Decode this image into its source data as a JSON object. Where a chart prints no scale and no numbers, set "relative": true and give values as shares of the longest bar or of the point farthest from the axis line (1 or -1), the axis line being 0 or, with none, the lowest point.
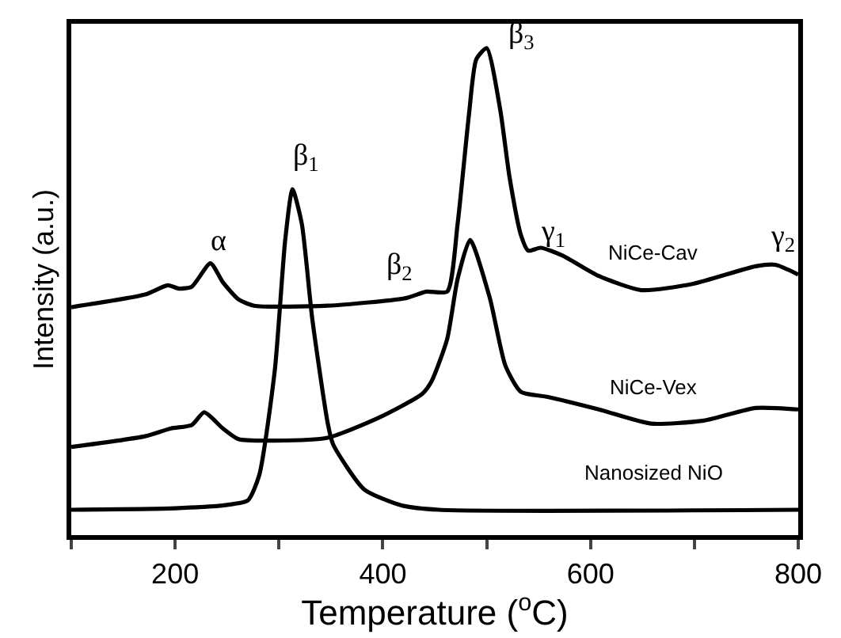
{
  "chart_data": {
    "type": "line",
    "relative": true,
    "xlabel": "Temperature ($^{o}$C)",
    "ylabel": "Intensity (a.u.)",
    "xlim": [
      100,
      800
    ],
    "xticks": [
      {
        "value": 100,
        "label": null
      },
      200,
      {
        "value": 300,
        "label": null
      },
      400,
      {
        "value": 500,
        "label": null
      },
      600,
      {
        "value": 700,
        "label": null
      },
      800
    ],
    "series": [
      {
        "name": "NiCe-Cav",
        "color": "#000000",
        "x": [
          100,
          171,
          193,
          204,
          216,
          234,
          246,
          261,
          276,
          347,
          423,
          442,
          462,
          472,
          483,
          490,
          500,
          513,
          522,
          533,
          540,
          552,
          573,
          608,
          649,
          699,
          759,
          778,
          800
        ],
        "values": [
          0.468,
          0.494,
          0.513,
          0.506,
          0.51,
          0.558,
          0.519,
          0.484,
          0.471,
          0.471,
          0.487,
          0.5,
          0.5,
          0.639,
          0.865,
          0.977,
          1.0,
          0.874,
          0.735,
          0.616,
          0.584,
          0.59,
          0.574,
          0.532,
          0.503,
          0.516,
          0.552,
          0.555,
          0.535
        ]
      },
      {
        "name": "NiCe-Vex",
        "color": "#000000",
        "x": [
          100,
          171,
          196,
          216,
          228,
          246,
          261,
          296,
          347,
          397,
          438,
          447,
          462,
          472,
          484,
          503,
          518,
          533,
          558,
          608,
          658,
          709,
          759,
          800
        ],
        "values": [
          0.181,
          0.203,
          0.219,
          0.226,
          0.252,
          0.219,
          0.197,
          0.194,
          0.2,
          0.242,
          0.29,
          0.316,
          0.403,
          0.526,
          0.606,
          0.487,
          0.348,
          0.294,
          0.284,
          0.258,
          0.229,
          0.235,
          0.261,
          0.258
        ]
      },
      {
        "name": "Nanosized NiO",
        "color": "#000000",
        "x": [
          100,
          200,
          250,
          270,
          281,
          296,
          306,
          313,
          322,
          332,
          347,
          352,
          382,
          418,
          454,
          800
        ],
        "values": [
          0.052,
          0.055,
          0.062,
          0.071,
          0.123,
          0.339,
          0.606,
          0.71,
          0.639,
          0.445,
          0.229,
          0.187,
          0.094,
          0.061,
          0.052,
          0.052
        ]
      }
    ],
    "annotations": [
      {
        "text": "α",
        "x": 234,
        "y": 0.558
      },
      {
        "text": "β$_{1}$",
        "x": 313,
        "y": 0.71
      },
      {
        "text": "β$_{2}$",
        "x": 442,
        "y": 0.5
      },
      {
        "text": "β$_{3}$",
        "x": 500,
        "y": 1.0
      },
      {
        "text": "γ$_{1}$",
        "x": 552,
        "y": 0.59
      },
      {
        "text": "γ$_{2}$",
        "x": 778,
        "y": 0.555
      }
    ]
  }
}
